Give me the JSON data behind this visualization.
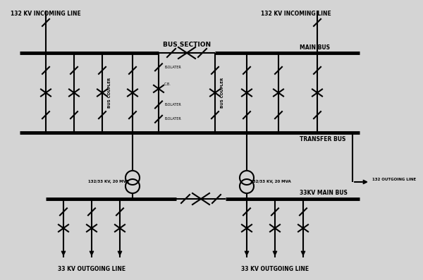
{
  "bg_color": "#d4d4d4",
  "line_color": "#000000",
  "lw": 1.5,
  "blw": 3.5,
  "labels": {
    "top_left": "132 KV INCOMING LINE",
    "top_right": "132 KV INCOMING LINE",
    "main_bus": "MAIN BUS",
    "bus_section": "BUS SECTION",
    "bus_coupler_left": "BUS COUPLER",
    "bus_coupler_right": "BUS COUPLER",
    "isolater_top": "ISOLATER",
    "cb": "C.B.",
    "isolater_mid": "ISOLATER",
    "isolater_bot": "ISOLATER",
    "transfer_bus": "TRANSFER BUS",
    "transformer_left": "132/33 KV, 20 MVA",
    "transformer_right": "132/33 KV, 20 MVA",
    "outgoing_132": "132 OUTGOING LINE",
    "bus_33kv": "33KV MAIN BUS",
    "outgoing_33_left": "33 KV OUTGOING LINE",
    "outgoing_33_right": "33 KV OUTGOING LINE"
  },
  "fs": 6.5,
  "fs_sm": 5.5
}
